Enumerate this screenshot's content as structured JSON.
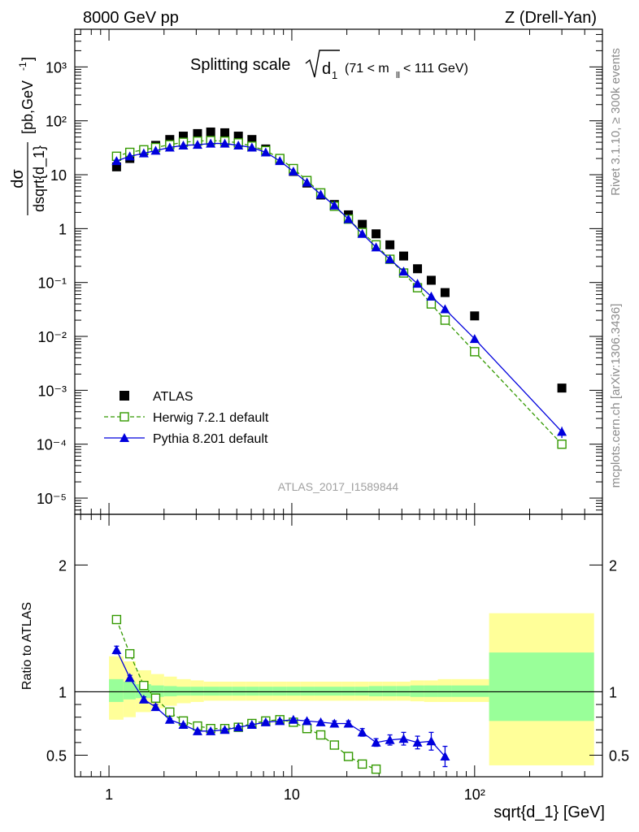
{
  "header": {
    "left": "8000 GeV pp",
    "right": "Z (Drell-Yan)"
  },
  "side_labels": {
    "rivet": "Rivet 3.1.10, ≥ 300k events",
    "mcplots": "mcplots.cern.ch [arXiv:1306.3436]"
  },
  "title": {
    "main": "Splitting scale",
    "sym": "d",
    "sub": "1",
    "range": "(71 < m",
    "range_sub": "ll",
    "range_end": " < 111 GeV)"
  },
  "watermark": "ATLAS_2017_I1589844",
  "colors": {
    "atlas": "#000000",
    "herwig": "#339900",
    "pythia": "#0000dd",
    "band_inner": "#99ff99",
    "band_outer": "#ffff99"
  },
  "chart_data": [
    {
      "type": "scatter",
      "panel": "main",
      "xlog": true,
      "ylog": true,
      "xlim": [
        0.65,
        500
      ],
      "ylim": [
        5e-06,
        5000
      ],
      "ylabel": "dσ / dsqrt{d_1} [pb,GeV⁻¹]",
      "xticks": [
        "1",
        "10",
        "10²"
      ],
      "yticks": [
        "10⁻⁵",
        "10⁻⁴",
        "10⁻³",
        "10⁻²",
        "10⁻¹",
        "1",
        "10",
        "10²",
        "10³"
      ],
      "legend_position": "bottom-left",
      "series": [
        {
          "name": "ATLAS",
          "style": "markers",
          "x": [
            1.1,
            1.3,
            1.55,
            1.8,
            2.15,
            2.55,
            3.05,
            3.6,
            4.3,
            5.1,
            6.05,
            7.2,
            8.6,
            10.2,
            12.1,
            14.4,
            17.1,
            20.4,
            24.3,
            28.9,
            34.4,
            40.9,
            48.7,
            57.9,
            68.9,
            100,
            300
          ],
          "y": [
            14,
            20,
            28,
            35,
            45,
            52,
            58,
            62,
            60,
            52,
            45,
            30,
            19,
            11.5,
            7,
            4.2,
            2.8,
            1.8,
            1.2,
            0.8,
            0.5,
            0.31,
            0.18,
            0.11,
            0.065,
            0.024,
            0.0011
          ]
        },
        {
          "name": "Herwig 7.2.1 default",
          "style": "dashed-open-square",
          "x": [
            1.1,
            1.3,
            1.55,
            1.8,
            2.15,
            2.55,
            3.05,
            3.6,
            4.3,
            5.1,
            6.05,
            7.2,
            8.6,
            10.2,
            12.1,
            14.4,
            17.1,
            20.4,
            24.3,
            28.9,
            34.4,
            40.9,
            48.7,
            57.9,
            68.9,
            100,
            300
          ],
          "y": [
            22,
            26,
            29,
            32,
            36,
            40,
            42,
            43,
            42,
            39,
            34,
            28,
            20,
            13,
            7.8,
            4.6,
            2.6,
            1.5,
            0.85,
            0.5,
            0.27,
            0.15,
            0.08,
            0.04,
            0.02,
            0.0052,
            0.0001
          ]
        },
        {
          "name": "Pythia 8.201 default",
          "style": "solid-triangle",
          "x": [
            1.1,
            1.3,
            1.55,
            1.8,
            2.15,
            2.55,
            3.05,
            3.6,
            4.3,
            5.1,
            6.05,
            7.2,
            8.6,
            10.2,
            12.1,
            14.4,
            17.1,
            20.4,
            24.3,
            28.9,
            34.4,
            40.9,
            48.7,
            57.9,
            68.9,
            100,
            300
          ],
          "y": [
            18,
            22,
            25,
            28,
            32,
            35,
            36,
            38,
            38,
            35,
            32,
            26,
            18,
            11.5,
            7.2,
            4.3,
            2.7,
            1.5,
            0.8,
            0.45,
            0.27,
            0.16,
            0.095,
            0.055,
            0.032,
            0.009,
            0.00017
          ],
          "yerr": [
            0,
            0,
            0,
            0,
            0,
            0,
            0,
            0,
            0,
            0,
            0,
            0,
            0,
            0,
            0,
            0,
            0,
            0,
            0,
            0,
            0,
            0,
            0,
            0,
            0,
            0,
            4e-05
          ]
        }
      ]
    },
    {
      "type": "line",
      "panel": "ratio",
      "xlog": true,
      "xlim": [
        0.65,
        500
      ],
      "ylim": [
        0.33,
        2.4
      ],
      "ylabel": "Ratio to ATLAS",
      "xlabel": "sqrt{d_1} [GeV]",
      "yticks": [
        "0.5",
        "1",
        "2"
      ],
      "xticks": [
        "1",
        "10",
        "10²"
      ],
      "band_edges": [
        1,
        1.2,
        1.4,
        1.7,
        2.0,
        2.35,
        2.8,
        3.3,
        4.0,
        4.7,
        5.6,
        6.6,
        7.9,
        9.4,
        11.1,
        13.2,
        15.7,
        18.7,
        22.2,
        26.4,
        31.4,
        37.4,
        44.5,
        52.9,
        62.9,
        74.9,
        120,
        450
      ],
      "band_inner": [
        [
          0.92,
          1.1
        ],
        [
          0.94,
          1.08
        ],
        [
          0.95,
          1.06
        ],
        [
          0.96,
          1.05
        ],
        [
          0.965,
          1.045
        ],
        [
          0.97,
          1.04
        ],
        [
          0.97,
          1.04
        ],
        [
          0.97,
          1.04
        ],
        [
          0.97,
          1.04
        ],
        [
          0.97,
          1.04
        ],
        [
          0.97,
          1.04
        ],
        [
          0.97,
          1.04
        ],
        [
          0.97,
          1.04
        ],
        [
          0.97,
          1.04
        ],
        [
          0.97,
          1.04
        ],
        [
          0.97,
          1.04
        ],
        [
          0.97,
          1.04
        ],
        [
          0.97,
          1.04
        ],
        [
          0.97,
          1.04
        ],
        [
          0.965,
          1.045
        ],
        [
          0.965,
          1.045
        ],
        [
          0.965,
          1.045
        ],
        [
          0.96,
          1.05
        ],
        [
          0.96,
          1.05
        ],
        [
          0.96,
          1.05
        ],
        [
          0.96,
          1.05
        ],
        [
          0.77,
          1.31
        ]
      ],
      "band_outer": [
        [
          0.78,
          1.28
        ],
        [
          0.8,
          1.24
        ],
        [
          0.84,
          1.17
        ],
        [
          0.87,
          1.14
        ],
        [
          0.89,
          1.12
        ],
        [
          0.91,
          1.1
        ],
        [
          0.92,
          1.09
        ],
        [
          0.93,
          1.08
        ],
        [
          0.93,
          1.08
        ],
        [
          0.93,
          1.08
        ],
        [
          0.93,
          1.08
        ],
        [
          0.93,
          1.08
        ],
        [
          0.93,
          1.08
        ],
        [
          0.93,
          1.08
        ],
        [
          0.93,
          1.08
        ],
        [
          0.93,
          1.08
        ],
        [
          0.93,
          1.08
        ],
        [
          0.93,
          1.08
        ],
        [
          0.93,
          1.08
        ],
        [
          0.93,
          1.08
        ],
        [
          0.93,
          1.08
        ],
        [
          0.93,
          1.08
        ],
        [
          0.925,
          1.09
        ],
        [
          0.92,
          1.09
        ],
        [
          0.92,
          1.1
        ],
        [
          0.92,
          1.1
        ],
        [
          0.42,
          1.62
        ]
      ],
      "series": [
        {
          "name": "Herwig 7.2.1 default",
          "style": "dashed-open-square",
          "x": [
            1.1,
            1.3,
            1.55,
            1.8,
            2.15,
            2.55,
            3.05,
            3.6,
            4.3,
            5.1,
            6.05,
            7.2,
            8.6,
            10.2,
            12.1,
            14.4,
            17.1,
            20.4,
            24.3,
            28.9
          ],
          "y": [
            1.57,
            1.3,
            1.05,
            0.95,
            0.84,
            0.77,
            0.73,
            0.71,
            0.71,
            0.72,
            0.75,
            0.77,
            0.78,
            0.76,
            0.71,
            0.66,
            0.58,
            0.49,
            0.43,
            0.39
          ]
        },
        {
          "name": "Pythia 8.201 default",
          "style": "solid-triangle",
          "x": [
            1.1,
            1.3,
            1.55,
            1.8,
            2.15,
            2.55,
            3.05,
            3.6,
            4.3,
            5.1,
            6.05,
            7.2,
            8.6,
            10.2,
            12.1,
            14.4,
            17.1,
            20.4,
            24.3,
            28.9,
            34.4,
            40.9,
            48.7,
            57.9,
            68.9
          ],
          "y": [
            1.33,
            1.11,
            0.94,
            0.88,
            0.78,
            0.74,
            0.69,
            0.69,
            0.7,
            0.72,
            0.74,
            0.76,
            0.77,
            0.78,
            0.77,
            0.76,
            0.75,
            0.75,
            0.68,
            0.6,
            0.62,
            0.63,
            0.6,
            0.61,
            0.49
          ],
          "yerr": [
            0.03,
            0.02,
            0.02,
            0.02,
            0.01,
            0.01,
            0.01,
            0.01,
            0.01,
            0.01,
            0.01,
            0.01,
            0.01,
            0.01,
            0.01,
            0.01,
            0.02,
            0.02,
            0.03,
            0.03,
            0.04,
            0.05,
            0.05,
            0.07,
            0.08
          ]
        }
      ]
    }
  ]
}
